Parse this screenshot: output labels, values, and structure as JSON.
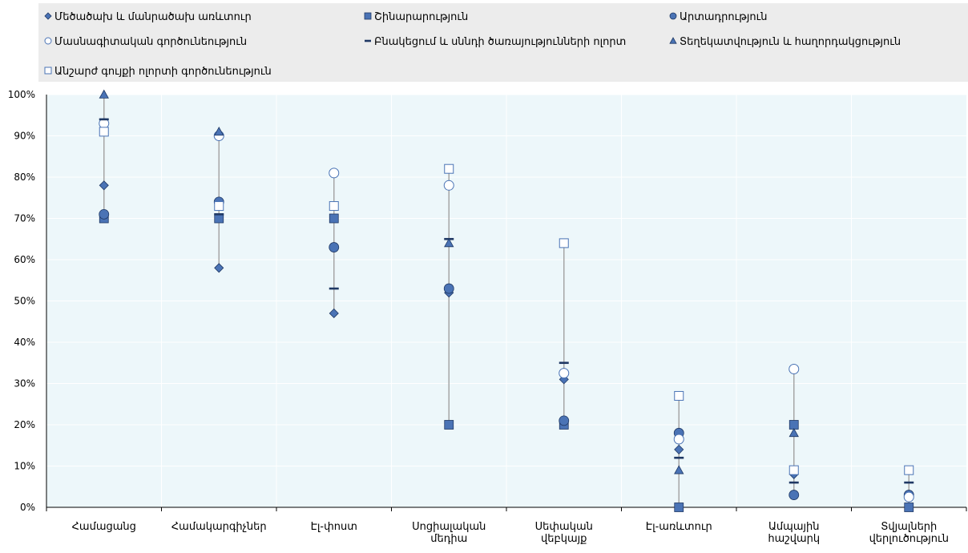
{
  "chart_data": {
    "type": "scatter",
    "categories": [
      [
        "Համացանց"
      ],
      [
        "Համակարգիչներ"
      ],
      [
        "Էլ-փոստ"
      ],
      [
        "Սոցիալական",
        "մեդիա"
      ],
      [
        "Սեփական",
        "վեբկայք"
      ],
      [
        "Էլ-առևտուր"
      ],
      [
        "Ամպային",
        "հաշվարկ"
      ],
      [
        "Տվյալների",
        "վերլուծություն"
      ]
    ],
    "ylim": [
      0,
      100
    ],
    "yticks": [
      0,
      10,
      20,
      30,
      40,
      50,
      60,
      70,
      80,
      90,
      100
    ],
    "ytick_labels": [
      "0%",
      "10%",
      "20%",
      "30%",
      "40%",
      "50%",
      "60%",
      "70%",
      "80%",
      "90%",
      "100%"
    ],
    "legend_position": "top",
    "grid": true,
    "series": [
      {
        "name": "Մեծածախ և մանրածախ առևտուր",
        "marker": "diamond",
        "values": [
          78,
          58,
          47,
          52,
          31,
          14,
          8,
          3
        ]
      },
      {
        "name": "Շինարարություն",
        "marker": "square",
        "values": [
          70,
          70,
          70,
          20,
          20,
          0,
          20,
          0
        ]
      },
      {
        "name": "Արտադրություն",
        "marker": "circle",
        "values": [
          71,
          74,
          63,
          53,
          21,
          18,
          3,
          3
        ]
      },
      {
        "name": "Մասնագիտական գործունեություն",
        "marker": "circle-open",
        "values": [
          93,
          90,
          81,
          78,
          32.5,
          16.5,
          33.5,
          2.5
        ]
      },
      {
        "name": "Բնակեցում և սննդի ծառայությունների ոլորտ",
        "marker": "dash",
        "values": [
          94,
          71,
          53,
          65,
          35,
          12,
          6,
          6
        ]
      },
      {
        "name": "Տեղեկատվություն և հաղորդակցություն",
        "marker": "triangle",
        "values": [
          100,
          91,
          null,
          64,
          null,
          9,
          18,
          null
        ]
      },
      {
        "name": "Անշարժ գույքի ոլորտի գործունեություն",
        "marker": "square-open",
        "values": [
          91,
          73,
          73,
          82,
          64,
          27,
          9,
          9
        ]
      }
    ],
    "colors": {
      "marker_fill": "#4a73b5",
      "marker_stroke": "#1f3864",
      "range_line": "#a6a6a6",
      "legend_bg": "#ececec",
      "plot_bg": "#edf7fa",
      "axis": "#000000"
    }
  }
}
